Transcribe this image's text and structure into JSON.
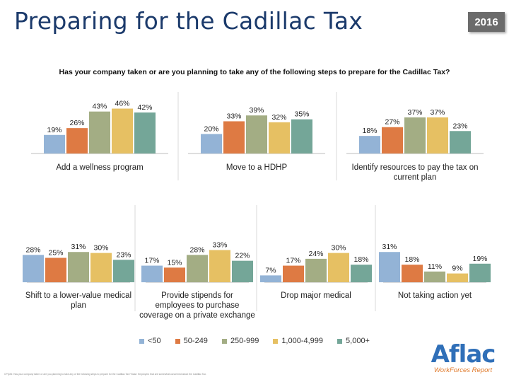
{
  "title": "Preparing for the Cadillac Tax",
  "year_badge": "2016",
  "chart_data": {
    "type": "bar",
    "title": "Has your company taken or are you planning to take any of the following steps to prepare for the Cadillac Tax?",
    "series": [
      {
        "name": "<50",
        "color": "#93b3d6"
      },
      {
        "name": "50-249",
        "color": "#de7a43"
      },
      {
        "name": "250-999",
        "color": "#a3ad84"
      },
      {
        "name": "1,000-4,999",
        "color": "#e6c063"
      },
      {
        "name": "5,000+",
        "color": "#74a698"
      }
    ],
    "groups": [
      {
        "label": [
          "Add a wellness program"
        ],
        "values": [
          19,
          26,
          43,
          46,
          42
        ]
      },
      {
        "label": [
          "Move to a HDHP"
        ],
        "values": [
          20,
          33,
          39,
          32,
          35
        ]
      },
      {
        "label": [
          "Identify resources to pay the tax on",
          "current plan"
        ],
        "values": [
          18,
          27,
          37,
          37,
          23
        ]
      },
      {
        "label": [
          "Shift to a lower-value medical",
          "plan"
        ],
        "values": [
          28,
          25,
          31,
          30,
          23
        ]
      },
      {
        "label": [
          "Provide stipends for",
          "employees to purchase",
          "coverage on a private exchange"
        ],
        "values": [
          17,
          15,
          28,
          33,
          22
        ]
      },
      {
        "label": [
          "Drop major medical"
        ],
        "values": [
          7,
          17,
          24,
          30,
          18
        ]
      },
      {
        "label": [
          "Not taking action yet"
        ],
        "values": [
          31,
          18,
          11,
          9,
          19
        ]
      }
    ],
    "value_suffix": "%"
  },
  "legend": [
    {
      "label": "<50",
      "color": "#93b3d6"
    },
    {
      "label": "50-249",
      "color": "#de7a43"
    },
    {
      "label": "250-999",
      "color": "#a3ad84"
    },
    {
      "label": "1,000-4,999",
      "color": "#e6c063"
    },
    {
      "label": "5,000+",
      "color": "#74a698"
    }
  ],
  "footnote": "CPQ26: Has your company taken or are you planning to take any of the following steps to prepare for the Cadillac Tax? Base: Employers that are somewhat concerned about the Cadillac Tax.",
  "logo": {
    "word": "Aflac",
    "subtitle": "WorkForces Report"
  }
}
